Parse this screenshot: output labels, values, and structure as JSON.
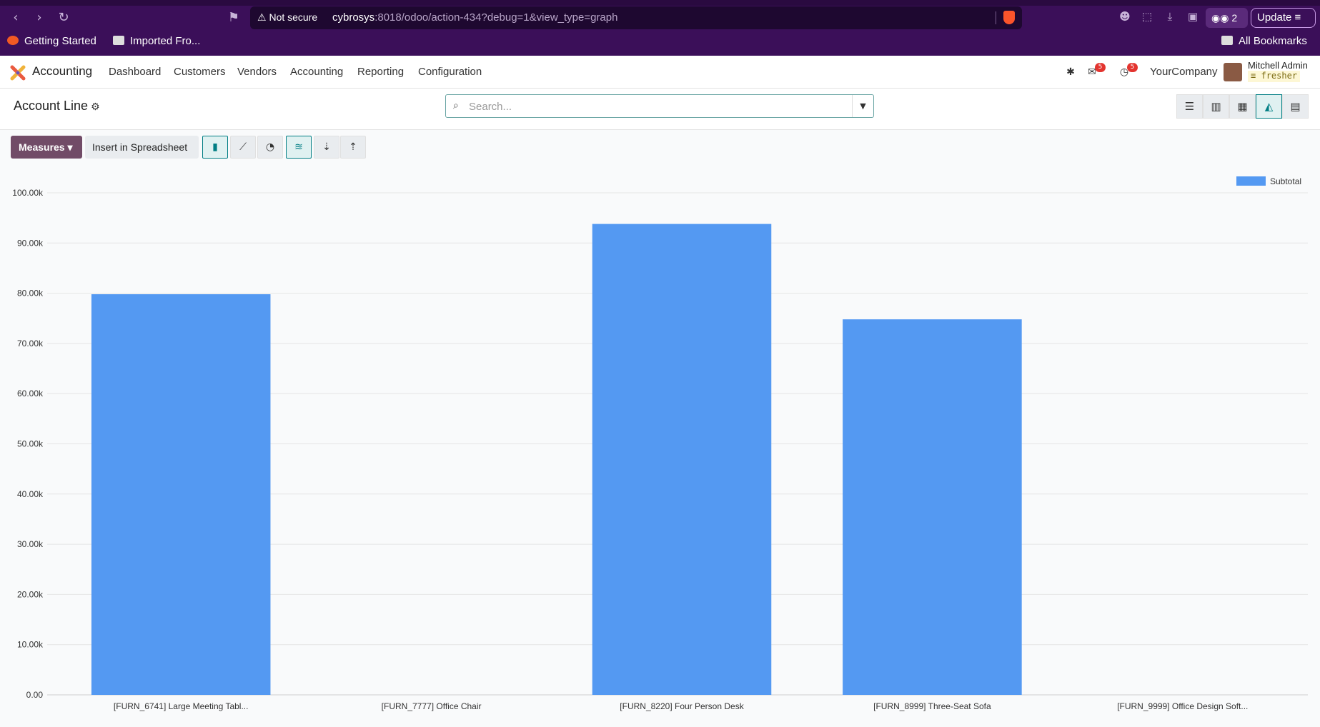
{
  "browser": {
    "not_secure": "Not secure",
    "url_host": "cybrosys",
    "url_path": ":8018/odoo/action-434?debug=1&view_type=graph",
    "profile_count": "2",
    "update_label": "Update",
    "bookmarks": [
      "Getting Started",
      "Imported Fro..."
    ],
    "all_bookmarks": "All Bookmarks"
  },
  "navbar": {
    "app_name": "Accounting",
    "menu": [
      "Dashboard",
      "Customers",
      "Vendors",
      "Accounting",
      "Reporting",
      "Configuration"
    ],
    "messages_count": "5",
    "activities_count": "5",
    "company": "YourCompany",
    "user_name": "Mitchell Admin",
    "database": "fresher"
  },
  "control_panel": {
    "breadcrumb": "Account Line",
    "search_placeholder": "Search..."
  },
  "toolbar": {
    "measures_label": "Measures",
    "insert_label": "Insert in Spreadsheet"
  },
  "colors": {
    "brand": "#714b67",
    "accent": "#017e84",
    "bar": "#5499f2"
  },
  "chart_data": {
    "type": "bar",
    "categories": [
      "[FURN_6741] Large Meeting Tabl...",
      "[FURN_7777] Office Chair",
      "[FURN_8220] Four Person Desk",
      "[FURN_8999] Three-Seat Sofa",
      "[FURN_9999] Office Design Soft..."
    ],
    "series": [
      {
        "name": "Subtotal",
        "values": [
          79800,
          0,
          93800,
          74800,
          0
        ]
      }
    ],
    "yticks": [
      "0.00",
      "10.00k",
      "20.00k",
      "30.00k",
      "40.00k",
      "50.00k",
      "60.00k",
      "70.00k",
      "80.00k",
      "90.00k",
      "100.00k"
    ],
    "ylim": [
      0,
      100000
    ],
    "grid": true,
    "legend_position": "top-right"
  }
}
